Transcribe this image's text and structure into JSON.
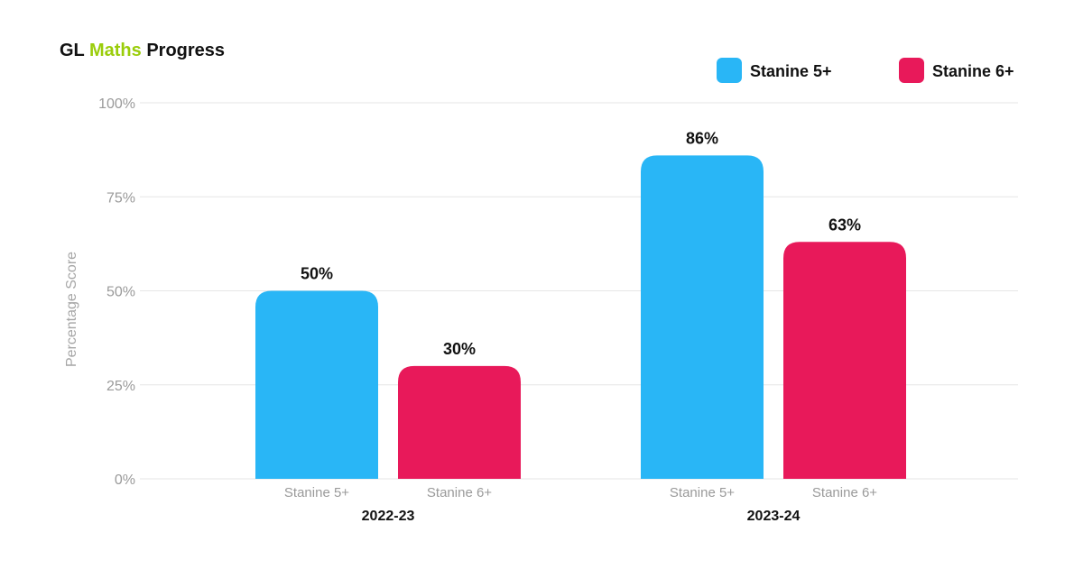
{
  "title": {
    "prefix": "GL",
    "highlight": "Maths",
    "suffix": "Progress",
    "highlight_color": "#9acd0a"
  },
  "colors": {
    "stanine5": "#29b6f6",
    "stanine6": "#e8195a"
  },
  "chart_data": {
    "type": "bar",
    "title": "GL Maths Progress",
    "xlabel": "",
    "ylabel": "Percentage Score",
    "ylim": [
      0,
      100
    ],
    "yticks": [
      "0%",
      "25%",
      "50%",
      "75%",
      "100%"
    ],
    "grid": true,
    "legend_position": "top-right",
    "legend": [
      {
        "name": "Stanine 5+",
        "color": "#29b6f6"
      },
      {
        "name": "Stanine 6+",
        "color": "#e8195a"
      }
    ],
    "groups": [
      {
        "label": "2022-23",
        "bars": [
          {
            "label": "Stanine 5+",
            "value": 50,
            "display": "50%"
          },
          {
            "label": "Stanine 6+",
            "value": 30,
            "display": "30%"
          }
        ]
      },
      {
        "label": "2023-24",
        "bars": [
          {
            "label": "Stanine 5+",
            "value": 86,
            "display": "86%"
          },
          {
            "label": "Stanine 6+",
            "value": 63,
            "display": "63%"
          }
        ]
      }
    ]
  }
}
